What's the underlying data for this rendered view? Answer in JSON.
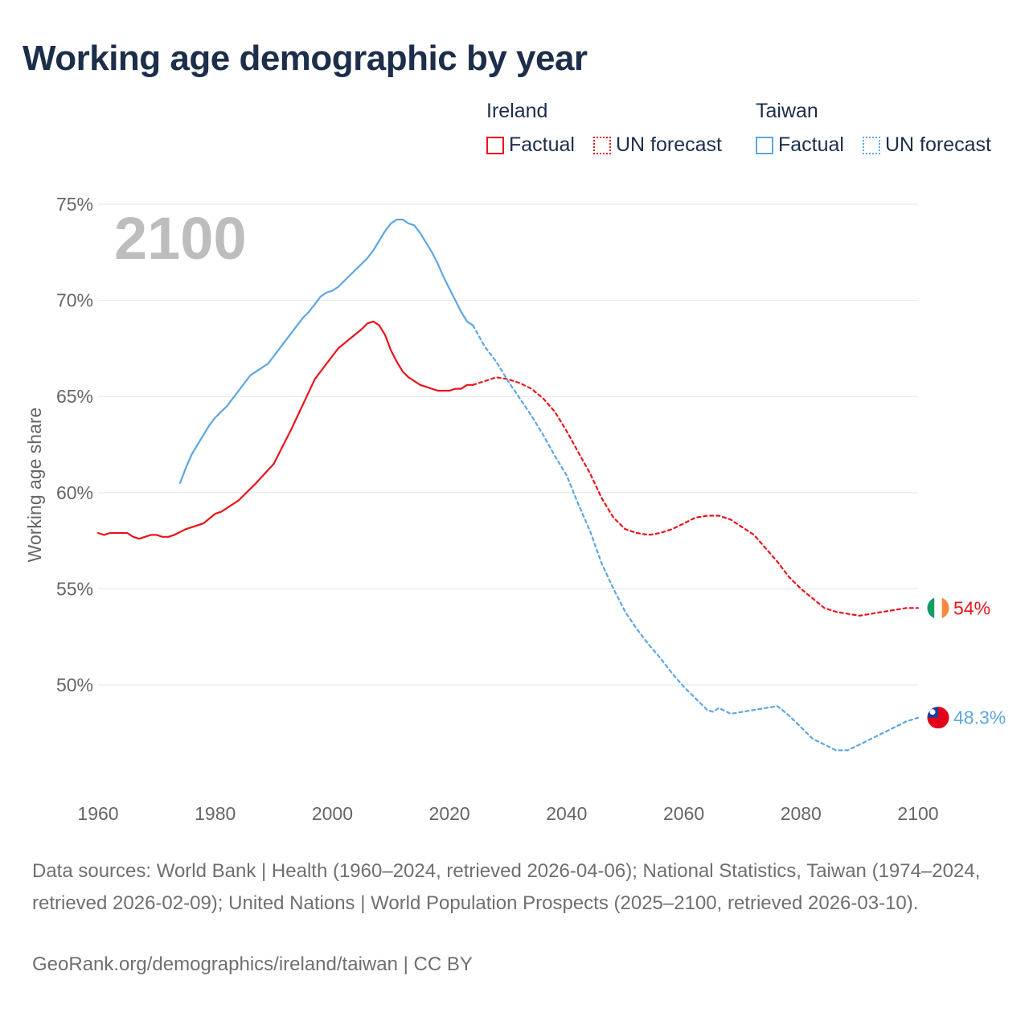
{
  "title": "Working age demographic by year",
  "year_overlay": "2100",
  "legend": {
    "groups": [
      {
        "name": "Ireland",
        "color": "#e8141b",
        "items": [
          {
            "label": "Factual",
            "style": "solid"
          },
          {
            "label": "UN forecast",
            "style": "dotted"
          }
        ]
      },
      {
        "name": "Taiwan",
        "color": "#5ea6e2",
        "items": [
          {
            "label": "Factual",
            "style": "solid"
          },
          {
            "label": "UN forecast",
            "style": "dotted"
          }
        ]
      }
    ]
  },
  "chart_data": {
    "type": "line",
    "title": "Working age demographic by year",
    "xlabel": "",
    "ylabel": "Working age share",
    "xlim": [
      1960,
      2100
    ],
    "ylim": [
      45,
      75
    ],
    "x_ticks": [
      1960,
      1980,
      2000,
      2020,
      2040,
      2060,
      2080,
      2100
    ],
    "y_ticks": [
      {
        "value": 50,
        "label": "50%"
      },
      {
        "value": 55,
        "label": "55%"
      },
      {
        "value": 60,
        "label": "60%"
      },
      {
        "value": 65,
        "label": "65%"
      },
      {
        "value": 70,
        "label": "70%"
      },
      {
        "value": 75,
        "label": "75%"
      }
    ],
    "grid": true,
    "series": [
      {
        "name": "Ireland",
        "segment": "Factual",
        "color": "#e8141b",
        "x": [
          1960,
          1961,
          1962,
          1963,
          1964,
          1965,
          1966,
          1967,
          1968,
          1969,
          1970,
          1971,
          1972,
          1973,
          1975,
          1978,
          1980,
          1981,
          1984,
          1987,
          1990,
          1993,
          1995,
          1997,
          1999,
          2001,
          2003,
          2005,
          2006,
          2007,
          2008,
          2009,
          2010,
          2011,
          2012,
          2013,
          2014,
          2015,
          2016,
          2018,
          2020,
          2021,
          2022,
          2023,
          2024
        ],
        "values": [
          57.9,
          57.8,
          57.9,
          57.9,
          57.9,
          57.9,
          57.7,
          57.6,
          57.7,
          57.8,
          57.8,
          57.7,
          57.7,
          57.8,
          58.1,
          58.4,
          58.9,
          59.0,
          59.6,
          60.5,
          61.5,
          63.3,
          64.6,
          65.9,
          66.7,
          67.5,
          68.0,
          68.5,
          68.8,
          68.9,
          68.7,
          68.2,
          67.4,
          66.8,
          66.3,
          66.0,
          65.8,
          65.6,
          65.5,
          65.3,
          65.3,
          65.4,
          65.4,
          65.6,
          65.6
        ]
      },
      {
        "name": "Ireland",
        "segment": "UN forecast",
        "color": "#e8141b",
        "x": [
          2024,
          2026,
          2028,
          2030,
          2032,
          2034,
          2036,
          2038,
          2040,
          2042,
          2044,
          2046,
          2048,
          2050,
          2052,
          2054,
          2056,
          2058,
          2060,
          2062,
          2064,
          2066,
          2068,
          2070,
          2072,
          2074,
          2076,
          2078,
          2080,
          2082,
          2084,
          2086,
          2088,
          2090,
          2092,
          2094,
          2096,
          2098,
          2100
        ],
        "values": [
          65.6,
          65.8,
          66.0,
          65.9,
          65.7,
          65.4,
          64.9,
          64.2,
          63.2,
          62.1,
          61.0,
          59.7,
          58.7,
          58.1,
          57.9,
          57.8,
          57.9,
          58.1,
          58.4,
          58.7,
          58.8,
          58.8,
          58.6,
          58.2,
          57.8,
          57.1,
          56.4,
          55.6,
          55.0,
          54.5,
          54.0,
          53.8,
          53.7,
          53.6,
          53.7,
          53.8,
          53.9,
          54.0,
          54.0
        ]
      },
      {
        "name": "Taiwan",
        "segment": "Factual",
        "color": "#5ea6e2",
        "x": [
          1974,
          1975,
          1976,
          1977,
          1978,
          1979,
          1980,
          1981,
          1982,
          1983,
          1984,
          1985,
          1986,
          1987,
          1988,
          1989,
          1990,
          1991,
          1992,
          1993,
          1994,
          1995,
          1996,
          1997,
          1998,
          1999,
          2000,
          2001,
          2002,
          2003,
          2004,
          2005,
          2006,
          2007,
          2008,
          2009,
          2010,
          2011,
          2012,
          2013,
          2014,
          2015,
          2016,
          2017,
          2018,
          2019,
          2020,
          2021,
          2022,
          2023,
          2024
        ],
        "values": [
          60.5,
          61.3,
          62.0,
          62.5,
          63.0,
          63.5,
          63.9,
          64.2,
          64.5,
          64.9,
          65.3,
          65.7,
          66.1,
          66.3,
          66.5,
          66.7,
          67.1,
          67.5,
          67.9,
          68.3,
          68.7,
          69.1,
          69.4,
          69.8,
          70.2,
          70.4,
          70.5,
          70.7,
          71.0,
          71.3,
          71.6,
          71.9,
          72.2,
          72.6,
          73.1,
          73.6,
          74.0,
          74.2,
          74.2,
          74.0,
          73.9,
          73.5,
          73.0,
          72.5,
          71.9,
          71.2,
          70.6,
          70.0,
          69.4,
          68.9,
          68.7
        ]
      },
      {
        "name": "Taiwan",
        "segment": "UN forecast",
        "color": "#5ea6e2",
        "x": [
          2024,
          2026,
          2028,
          2030,
          2032,
          2034,
          2036,
          2038,
          2040,
          2042,
          2044,
          2046,
          2048,
          2050,
          2052,
          2054,
          2056,
          2058,
          2060,
          2062,
          2063,
          2064,
          2065,
          2066,
          2068,
          2070,
          2072,
          2074,
          2076,
          2078,
          2080,
          2082,
          2084,
          2086,
          2088,
          2090,
          2092,
          2094,
          2096,
          2098,
          2100
        ],
        "values": [
          68.7,
          67.6,
          66.8,
          65.8,
          64.9,
          64.0,
          63.0,
          61.9,
          60.9,
          59.4,
          58.0,
          56.3,
          55.0,
          53.8,
          52.9,
          52.1,
          51.4,
          50.6,
          49.9,
          49.3,
          49.0,
          48.7,
          48.6,
          48.8,
          48.5,
          48.6,
          48.7,
          48.8,
          48.9,
          48.4,
          47.8,
          47.2,
          46.9,
          46.6,
          46.6,
          46.9,
          47.2,
          47.5,
          47.8,
          48.1,
          48.3
        ]
      }
    ],
    "end_labels": [
      {
        "series": "Ireland",
        "value": 54.0,
        "label": "54%",
        "color": "#e8141b"
      },
      {
        "series": "Taiwan",
        "value": 48.3,
        "label": "48.3%",
        "color": "#5ea6e2"
      }
    ]
  },
  "footer": {
    "sources": "Data sources: World Bank | Health (1960–2024, retrieved 2026-04-06); National Statistics, Taiwan (1974–2024, retrieved 2026-02-09); United Nations | World Population Prospects (2025–2100, retrieved 2026-03-10).",
    "credit": "GeoRank.org/demographics/ireland/taiwan | CC BY"
  }
}
